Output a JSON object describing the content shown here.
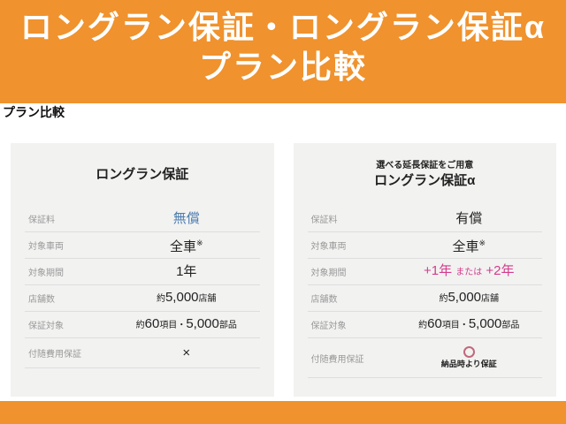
{
  "header": {
    "line1": "ロングラン保証・ロングラン保証α",
    "line2": "プラン比較"
  },
  "section_heading": "プラン比較",
  "left_card": {
    "title": "ロングラン保証",
    "rows": {
      "fee": {
        "label": "保証料",
        "value": "無償"
      },
      "vehicles": {
        "label": "対象車両",
        "value": "全車",
        "note": "※"
      },
      "period": {
        "label": "対象期間",
        "value": "1年"
      },
      "stores": {
        "label": "店舗数",
        "prefix": "約",
        "num": "5,000",
        "suffix": "店舗"
      },
      "coverage": {
        "label": "保証対象",
        "p1": "約",
        "n1": "60",
        "s1": "項目・",
        "n2": "5,000",
        "s2": "部品"
      },
      "incidental": {
        "label": "付随費用保証",
        "value": "×"
      }
    }
  },
  "right_card": {
    "subtitle": "選べる延長保証をご用意",
    "title": "ロングラン保証α",
    "rows": {
      "fee": {
        "label": "保証料",
        "value": "有償"
      },
      "vehicles": {
        "label": "対象車両",
        "value": "全車",
        "note": "※"
      },
      "period": {
        "label": "対象期間",
        "v1": "+1年",
        "conj": "または",
        "v2": "+2年"
      },
      "stores": {
        "label": "店舗数",
        "prefix": "約",
        "num": "5,000",
        "suffix": "店舗"
      },
      "coverage": {
        "label": "保証対象",
        "p1": "約",
        "n1": "60",
        "s1": "項目・",
        "n2": "5,000",
        "s2": "部品"
      },
      "incidental": {
        "label": "付随費用保証",
        "mark": "circle",
        "caption": "納品時より保証"
      }
    }
  },
  "colors": {
    "brand_orange": "#F0922D",
    "accent_blue": "#4C7CAE",
    "accent_pink": "#D23C8C",
    "circle_mark": "#C0697B",
    "card_background": "#F2F2F1"
  }
}
